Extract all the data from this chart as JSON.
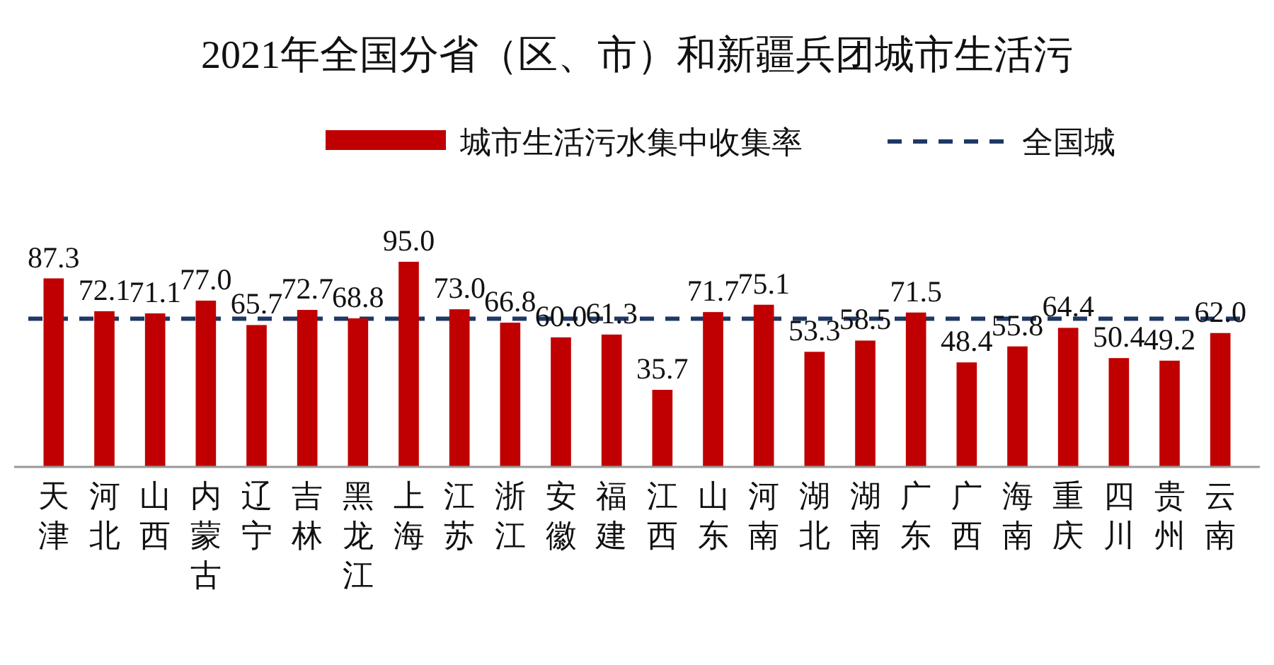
{
  "chart_data": {
    "type": "bar",
    "title": "2021年全国分省（区、市）和新疆兵团城市生活污",
    "categories": [
      "天津",
      "河北",
      "山西",
      "内蒙古",
      "辽宁",
      "吉林",
      "黑龙江",
      "上海",
      "江苏",
      "浙江",
      "安徽",
      "福建",
      "江西",
      "山东",
      "河南",
      "湖北",
      "湖南",
      "广东",
      "广西",
      "海南",
      "重庆",
      "四川",
      "贵州",
      "云南"
    ],
    "series": [
      {
        "name": "城市生活污水集中收集率",
        "color": "#c00000",
        "values": [
          87.3,
          72.1,
          71.1,
          77.0,
          65.7,
          72.7,
          68.8,
          95.0,
          73.0,
          66.8,
          60.0,
          61.3,
          35.7,
          71.7,
          75.1,
          53.3,
          58.5,
          71.5,
          48.4,
          55.8,
          64.4,
          50.4,
          49.2,
          62.0
        ],
        "value_labels": [
          "87.3",
          "72.1",
          "71.1",
          "77.0",
          "65.7",
          "72.7",
          "68.8",
          "95.0",
          "73.0",
          "66.8",
          "60.0",
          "61.3",
          "35.7",
          "71.7",
          "75.1",
          "53.3",
          "58.5",
          "71.5",
          "48.4",
          "55.8",
          "64.4",
          "50.4",
          "49.2",
          "62.0"
        ]
      }
    ],
    "ref_lines": [
      {
        "axis": "y",
        "value": 68.6,
        "label": "全国城",
        "color": "#1f3864",
        "line_style": "dashed"
      }
    ],
    "tick_labels": "x",
    "legend": "top"
  }
}
